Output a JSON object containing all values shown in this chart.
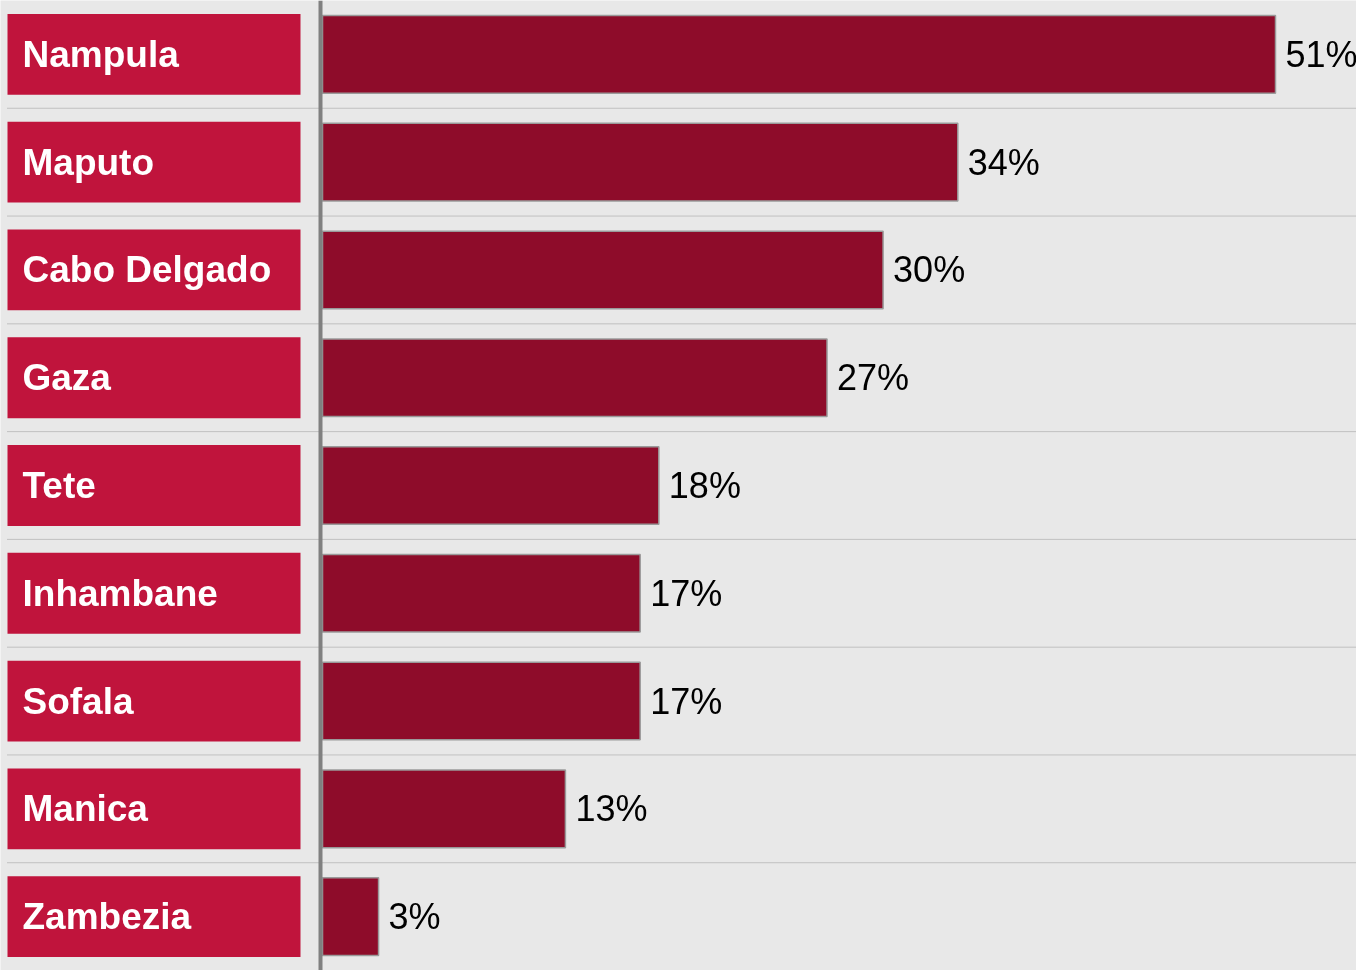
{
  "chart_data": {
    "type": "bar",
    "orientation": "horizontal",
    "categories": [
      "Nampula",
      "Maputo",
      "Cabo Delgado",
      "Gaza",
      "Tete",
      "Inhambane",
      "Sofala",
      "Manica",
      "Zambezia"
    ],
    "values": [
      51,
      34,
      30,
      27,
      18,
      17,
      17,
      13,
      3
    ],
    "value_labels": [
      "51%",
      "34%",
      "30%",
      "27%",
      "18%",
      "17%",
      "17%",
      "13%",
      "3%"
    ],
    "color": "#8e0c2a"
  }
}
